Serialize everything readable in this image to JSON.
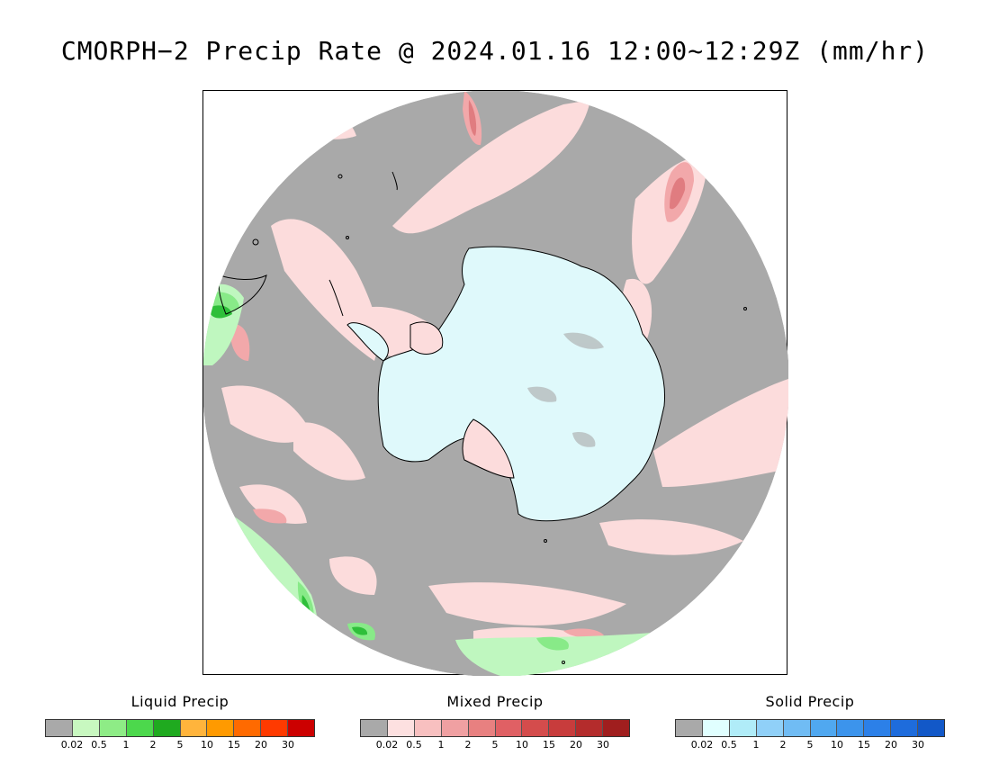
{
  "title": "CMORPH−2 Precip Rate @ 2024.01.16 12:00~12:29Z (mm/hr)",
  "map": {
    "projection": "south-polar-stereographic",
    "colors": {
      "no_precip": "#a9a9a9",
      "antarctica": "#dff9fb",
      "mixed_light": "#fcdcdc",
      "mixed_mid": "#f2a8aa",
      "mixed_dark": "#e07c80",
      "liquid_light": "#bff7bf",
      "liquid_mid": "#88ea88",
      "liquid_dark": "#2fbf3a",
      "coastline": "#000000"
    }
  },
  "legends": [
    {
      "id": "liquid",
      "title": "Liquid Precip",
      "colors": [
        "#a9a9a9",
        "#c8f8c0",
        "#8eec86",
        "#4cd84c",
        "#1faa1f",
        "#ffb43c",
        "#ff9a00",
        "#ff6a00",
        "#ff3a00",
        "#cc0000"
      ],
      "ticks": [
        "0.02",
        "0.5",
        "1",
        "2",
        "5",
        "10",
        "15",
        "20",
        "30"
      ]
    },
    {
      "id": "mixed",
      "title": "Mixed Precip",
      "colors": [
        "#a9a9a9",
        "#fde0e0",
        "#f8c0c0",
        "#f0a0a2",
        "#e88080",
        "#e06064",
        "#d44c4c",
        "#c83c3c",
        "#b42c2c",
        "#a01e1e"
      ],
      "ticks": [
        "0.02",
        "0.5",
        "1",
        "2",
        "5",
        "10",
        "15",
        "20",
        "30"
      ]
    },
    {
      "id": "solid",
      "title": "Solid Precip",
      "colors": [
        "#a9a9a9",
        "#e0ffff",
        "#b0ecf8",
        "#90d0f8",
        "#70bcf4",
        "#50a8f0",
        "#3c94ec",
        "#2c80e8",
        "#1e6cdc",
        "#1258c8"
      ],
      "ticks": [
        "0.02",
        "0.5",
        "1",
        "2",
        "5",
        "10",
        "15",
        "20",
        "30"
      ]
    }
  ]
}
